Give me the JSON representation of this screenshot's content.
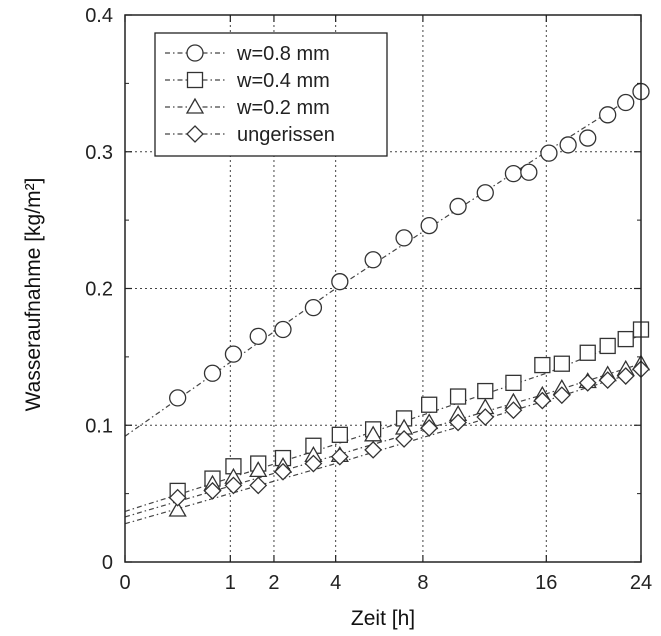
{
  "chart_data": {
    "type": "scatter",
    "xlabel": "Zeit [h]",
    "ylabel": "Wasseraufnahme [kg/m²]",
    "x_scale": "sqrt",
    "x_ticks": [
      0,
      1,
      2,
      4,
      8,
      16,
      24
    ],
    "y_ticks": [
      0,
      0.1,
      0.2,
      0.3,
      0.4
    ],
    "y_tick_labels": [
      "0",
      "0.1",
      "0.2",
      "0.3",
      "0.4"
    ],
    "xlim": [
      0,
      24
    ],
    "ylim": [
      0,
      0.4
    ],
    "grid": true,
    "legend_position": "top-left",
    "series": [
      {
        "name": "w=0.8 mm",
        "marker": "circle",
        "x": [
          0.25,
          0.69,
          1.06,
          1.6,
          2.25,
          3.2,
          4.16,
          5.55,
          7.02,
          8.34,
          10.0,
          11.7,
          13.6,
          14.7,
          16.2,
          17.7,
          19.3,
          21.0,
          22.6,
          24.0
        ],
        "y": [
          0.12,
          0.138,
          0.152,
          0.165,
          0.17,
          0.186,
          0.205,
          0.221,
          0.237,
          0.246,
          0.26,
          0.27,
          0.284,
          0.285,
          0.299,
          0.305,
          0.31,
          0.327,
          0.336,
          0.344
        ],
        "fit": [
          [
            0,
            0.092
          ],
          [
            4,
            0.2
          ],
          [
            16,
            0.3
          ],
          [
            24,
            0.344
          ]
        ]
      },
      {
        "name": "w=0.4 mm",
        "marker": "square",
        "x": [
          0.25,
          0.69,
          1.06,
          1.6,
          2.25,
          3.2,
          4.16,
          5.55,
          7.02,
          8.34,
          10.0,
          11.7,
          13.6,
          15.7,
          17.2,
          19.3,
          21.0,
          22.6,
          24.0
        ],
        "y": [
          0.052,
          0.061,
          0.07,
          0.072,
          0.076,
          0.085,
          0.093,
          0.097,
          0.105,
          0.115,
          0.121,
          0.125,
          0.131,
          0.144,
          0.145,
          0.153,
          0.158,
          0.163,
          0.17
        ],
        "fit": [
          [
            0,
            0.037
          ],
          [
            4,
            0.086
          ],
          [
            16,
            0.138
          ],
          [
            24,
            0.166
          ]
        ]
      },
      {
        "name": "w=0.2 mm",
        "marker": "triangle",
        "x": [
          0.25,
          0.69,
          1.06,
          1.6,
          2.25,
          3.2,
          4.16,
          5.55,
          7.02,
          8.34,
          10.0,
          11.7,
          13.6,
          15.7,
          17.2,
          19.3,
          21.0,
          22.6,
          24.0
        ],
        "y": [
          0.038,
          0.057,
          0.062,
          0.067,
          0.07,
          0.078,
          0.078,
          0.093,
          0.098,
          0.102,
          0.108,
          0.113,
          0.117,
          0.122,
          0.127,
          0.132,
          0.137,
          0.141,
          0.145
        ],
        "fit": [
          [
            0,
            0.033
          ],
          [
            4,
            0.078
          ],
          [
            16,
            0.123
          ],
          [
            24,
            0.145
          ]
        ]
      },
      {
        "name": "ungerissen",
        "marker": "diamond",
        "x": [
          0.25,
          0.69,
          1.06,
          1.6,
          2.25,
          3.2,
          4.16,
          5.55,
          7.02,
          8.34,
          10.0,
          11.7,
          13.6,
          15.7,
          17.2,
          19.3,
          21.0,
          22.6,
          24.0
        ],
        "y": [
          0.047,
          0.052,
          0.056,
          0.056,
          0.066,
          0.072,
          0.077,
          0.082,
          0.09,
          0.098,
          0.102,
          0.106,
          0.111,
          0.118,
          0.122,
          0.131,
          0.133,
          0.136,
          0.141
        ],
        "fit": [
          [
            0,
            0.028
          ],
          [
            4,
            0.072
          ],
          [
            16,
            0.118
          ],
          [
            24,
            0.14
          ]
        ]
      }
    ]
  }
}
